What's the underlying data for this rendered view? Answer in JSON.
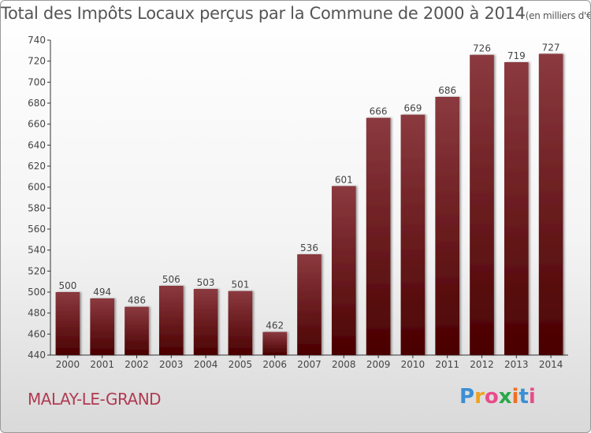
{
  "page": {
    "title": "Total des Impôts Locaux perçus par la Commune de 2000 à 2014",
    "unit_note": "(en milliers d'€)",
    "commune": "MALAY-LE-GRAND",
    "logo_text": "Proxiti"
  },
  "chart_data": {
    "type": "bar",
    "title": "Total des Impôts Locaux perçus par la Commune de 2000 à 2014",
    "subtitle": "(en milliers d'€)",
    "xlabel": "",
    "ylabel": "",
    "categories": [
      "2000",
      "2001",
      "2002",
      "2003",
      "2004",
      "2005",
      "2006",
      "2007",
      "2008",
      "2009",
      "2010",
      "2011",
      "2012",
      "2013",
      "2014"
    ],
    "values": [
      500,
      494,
      486,
      506,
      503,
      501,
      462,
      536,
      601,
      666,
      669,
      686,
      726,
      719,
      727
    ],
    "ylim": [
      440,
      740
    ],
    "yticks": [
      440,
      460,
      480,
      500,
      520,
      540,
      560,
      580,
      600,
      620,
      640,
      660,
      680,
      700,
      720,
      740
    ],
    "grid": false,
    "legend": "none",
    "colors": {
      "bar_top": "#8b3a3f",
      "bar_bottom": "#4a0000",
      "title": "#555555",
      "commune": "#b03a52"
    }
  }
}
